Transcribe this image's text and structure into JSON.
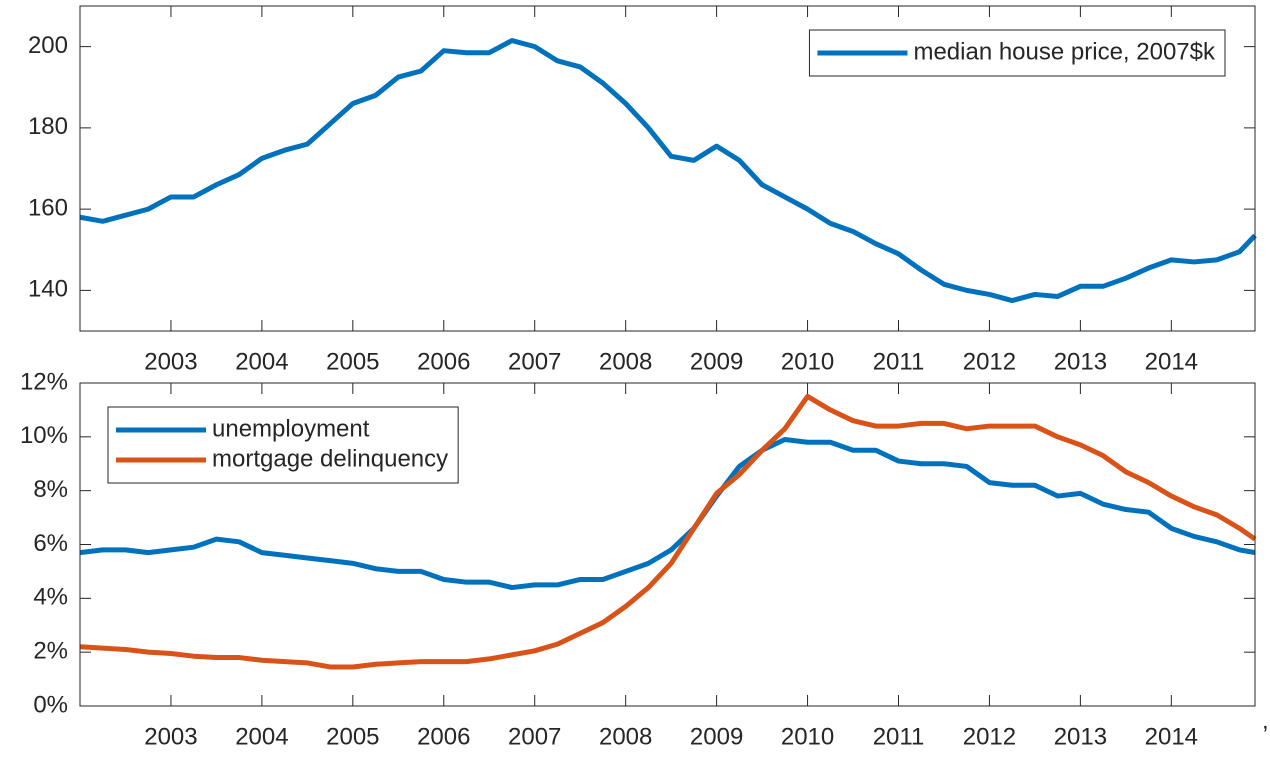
{
  "chart_data": [
    {
      "type": "line",
      "xlim": [
        2002,
        2014.92
      ],
      "ylim": [
        130,
        210
      ],
      "xticks": [
        2003,
        2004,
        2005,
        2006,
        2007,
        2008,
        2009,
        2010,
        2011,
        2012,
        2013,
        2014
      ],
      "yticks": [
        140,
        160,
        180,
        200
      ],
      "legend": "upper right",
      "x": [
        2002,
        2002.25,
        2002.5,
        2002.75,
        2003,
        2003.25,
        2003.5,
        2003.75,
        2004,
        2004.25,
        2004.5,
        2004.75,
        2005,
        2005.25,
        2005.5,
        2005.75,
        2006,
        2006.25,
        2006.5,
        2006.75,
        2007,
        2007.25,
        2007.5,
        2007.75,
        2008,
        2008.25,
        2008.5,
        2008.75,
        2009,
        2009.25,
        2009.5,
        2009.75,
        2010,
        2010.25,
        2010.5,
        2010.75,
        2011,
        2011.25,
        2011.5,
        2011.75,
        2012,
        2012.25,
        2012.5,
        2012.75,
        2013,
        2013.25,
        2013.5,
        2013.75,
        2014,
        2014.25,
        2014.5,
        2014.75,
        2014.92
      ],
      "series": [
        {
          "name": "median house price, 2007$k",
          "color": "#0072BD",
          "values": [
            158,
            157,
            158.5,
            160,
            163,
            163,
            166,
            168.5,
            172.5,
            174.5,
            176,
            181,
            186,
            188,
            192.5,
            194,
            199,
            198.5,
            198.5,
            201.5,
            200,
            196.5,
            195,
            191,
            186,
            180,
            173,
            172,
            175.5,
            172,
            166,
            163,
            160,
            156.5,
            154.5,
            151.5,
            149,
            145,
            141.5,
            140,
            139,
            137.5,
            139,
            138.5,
            141,
            141,
            143,
            145.5,
            147.5,
            147,
            147.5,
            149.5,
            153.5
          ]
        }
      ]
    },
    {
      "type": "line",
      "xlim": [
        2002,
        2014.92
      ],
      "ylim": [
        0,
        12
      ],
      "xticks": [
        2003,
        2004,
        2005,
        2006,
        2007,
        2008,
        2009,
        2010,
        2011,
        2012,
        2013,
        2014
      ],
      "yticks": [
        {
          "value": 0,
          "label": "0%"
        },
        {
          "value": 2,
          "label": "2%"
        },
        {
          "value": 4,
          "label": "4%"
        },
        {
          "value": 6,
          "label": "6%"
        },
        {
          "value": 8,
          "label": "8%"
        },
        {
          "value": 10,
          "label": "10%"
        },
        {
          "value": 12,
          "label": "12%"
        }
      ],
      "legend": "upper left",
      "x": [
        2002,
        2002.25,
        2002.5,
        2002.75,
        2003,
        2003.25,
        2003.5,
        2003.75,
        2004,
        2004.25,
        2004.5,
        2004.75,
        2005,
        2005.25,
        2005.5,
        2005.75,
        2006,
        2006.25,
        2006.5,
        2006.75,
        2007,
        2007.25,
        2007.5,
        2007.75,
        2008,
        2008.25,
        2008.5,
        2008.75,
        2009,
        2009.25,
        2009.5,
        2009.75,
        2010,
        2010.25,
        2010.5,
        2010.75,
        2011,
        2011.25,
        2011.5,
        2011.75,
        2012,
        2012.25,
        2012.5,
        2012.75,
        2013,
        2013.25,
        2013.5,
        2013.75,
        2014,
        2014.25,
        2014.5,
        2014.75,
        2014.92
      ],
      "series": [
        {
          "name": "unemployment",
          "color": "#0072BD",
          "values": [
            5.7,
            5.8,
            5.8,
            5.7,
            5.8,
            5.9,
            6.2,
            6.1,
            5.7,
            5.6,
            5.5,
            5.4,
            5.3,
            5.1,
            5.0,
            5.0,
            4.7,
            4.6,
            4.6,
            4.4,
            4.5,
            4.5,
            4.7,
            4.7,
            5.0,
            5.3,
            5.8,
            6.6,
            7.8,
            8.9,
            9.5,
            9.9,
            9.8,
            9.8,
            9.5,
            9.5,
            9.1,
            9.0,
            9.0,
            8.9,
            8.3,
            8.2,
            8.2,
            7.8,
            7.9,
            7.5,
            7.3,
            7.2,
            6.6,
            6.3,
            6.1,
            5.8,
            5.7
          ]
        },
        {
          "name": "mortgage delinquency",
          "color": "#D95319",
          "values": [
            2.2,
            2.15,
            2.1,
            2.0,
            1.95,
            1.85,
            1.8,
            1.8,
            1.7,
            1.65,
            1.6,
            1.45,
            1.45,
            1.55,
            1.6,
            1.65,
            1.65,
            1.65,
            1.75,
            1.9,
            2.05,
            2.3,
            2.7,
            3.1,
            3.7,
            4.4,
            5.3,
            6.6,
            7.9,
            8.6,
            9.5,
            10.3,
            11.5,
            11.0,
            10.6,
            10.4,
            10.4,
            10.5,
            10.5,
            10.3,
            10.4,
            10.4,
            10.4,
            10.0,
            9.7,
            9.3,
            8.7,
            8.3,
            7.8,
            7.4,
            7.1,
            6.6,
            6.2
          ]
        }
      ]
    }
  ],
  "caption": ","
}
